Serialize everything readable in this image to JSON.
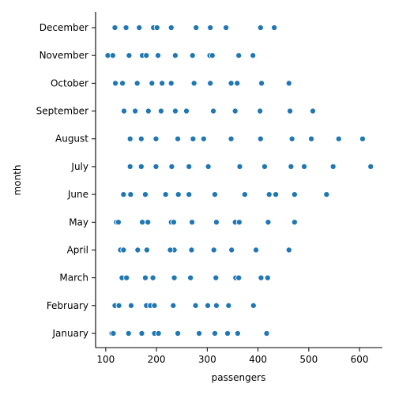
{
  "chart_data": {
    "type": "scatter",
    "title": "",
    "xlabel": "passengers",
    "ylabel": "month",
    "xlim": [
      80,
      645
    ],
    "xticks": [
      100,
      200,
      300,
      400,
      500,
      600
    ],
    "grid": false,
    "legend": "none",
    "point_color": "#1f77b4",
    "categories": [
      "January",
      "February",
      "March",
      "April",
      "May",
      "June",
      "July",
      "August",
      "September",
      "October",
      "November",
      "December"
    ],
    "points": {
      "January": [
        112,
        115,
        145,
        171,
        196,
        204,
        242,
        284,
        315,
        340,
        360,
        417
      ],
      "February": [
        118,
        126,
        150,
        180,
        188,
        196,
        233,
        277,
        301,
        318,
        342,
        391
      ],
      "March": [
        132,
        141,
        178,
        193,
        236,
        235,
        267,
        317,
        356,
        362,
        406,
        419
      ],
      "April": [
        129,
        135,
        163,
        181,
        235,
        227,
        269,
        313,
        348,
        348,
        396,
        461
      ],
      "May": [
        121,
        125,
        172,
        183,
        229,
        234,
        270,
        318,
        355,
        363,
        420,
        472
      ],
      "June": [
        135,
        149,
        178,
        218,
        243,
        264,
        315,
        374,
        422,
        435,
        472,
        535
      ],
      "July": [
        148,
        170,
        199,
        230,
        264,
        302,
        364,
        413,
        465,
        491,
        548,
        622
      ],
      "August": [
        148,
        170,
        199,
        242,
        272,
        293,
        347,
        405,
        467,
        505,
        559,
        606
      ],
      "September": [
        136,
        158,
        184,
        209,
        237,
        259,
        312,
        355,
        404,
        404,
        463,
        508
      ],
      "October": [
        119,
        133,
        162,
        191,
        211,
        229,
        274,
        306,
        347,
        359,
        407,
        461
      ],
      "November": [
        104,
        114,
        146,
        172,
        180,
        203,
        237,
        271,
        305,
        310,
        362,
        390
      ],
      "December": [
        118,
        140,
        166,
        194,
        201,
        229,
        278,
        306,
        336,
        337,
        405,
        432
      ]
    }
  }
}
